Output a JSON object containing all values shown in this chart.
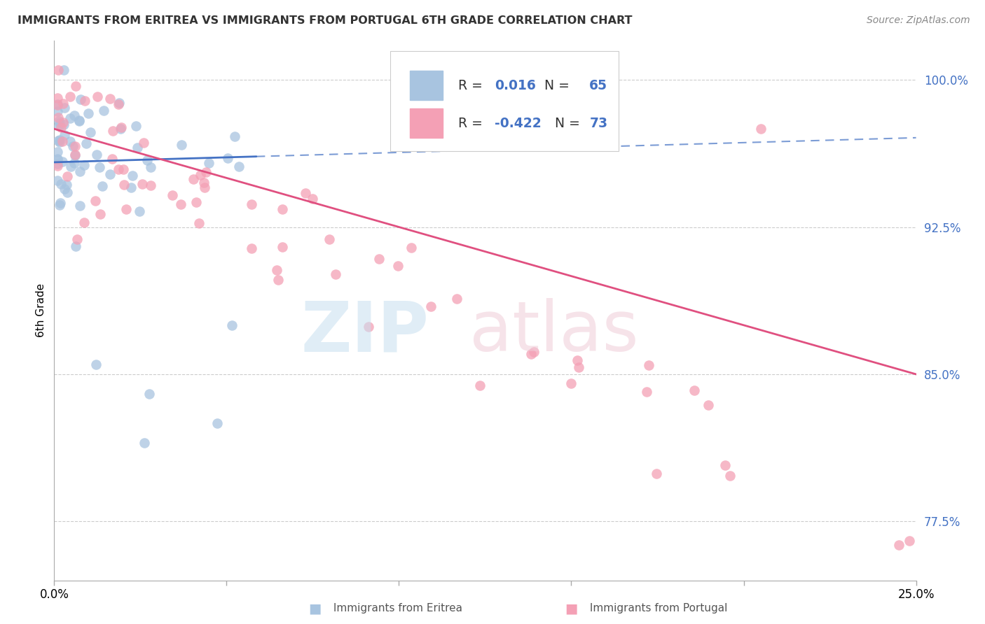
{
  "title": "IMMIGRANTS FROM ERITREA VS IMMIGRANTS FROM PORTUGAL 6TH GRADE CORRELATION CHART",
  "source": "Source: ZipAtlas.com",
  "ylabel": "6th Grade",
  "ytick_values": [
    0.775,
    0.85,
    0.925,
    1.0
  ],
  "ytick_labels": [
    "77.5%",
    "85.0%",
    "92.5%",
    "100.0%"
  ],
  "xlim": [
    0.0,
    0.25
  ],
  "ylim": [
    0.745,
    1.02
  ],
  "legend_r_eritrea": "0.016",
  "legend_n_eritrea": "65",
  "legend_r_portugal": "-0.422",
  "legend_n_portugal": "73",
  "eritrea_color": "#a8c4e0",
  "portugal_color": "#f4a0b5",
  "eritrea_line_color": "#4472c4",
  "portugal_line_color": "#e05080",
  "grid_color": "#cccccc",
  "background_color": "#ffffff",
  "eritrea_seed": 42,
  "portugal_seed": 99
}
